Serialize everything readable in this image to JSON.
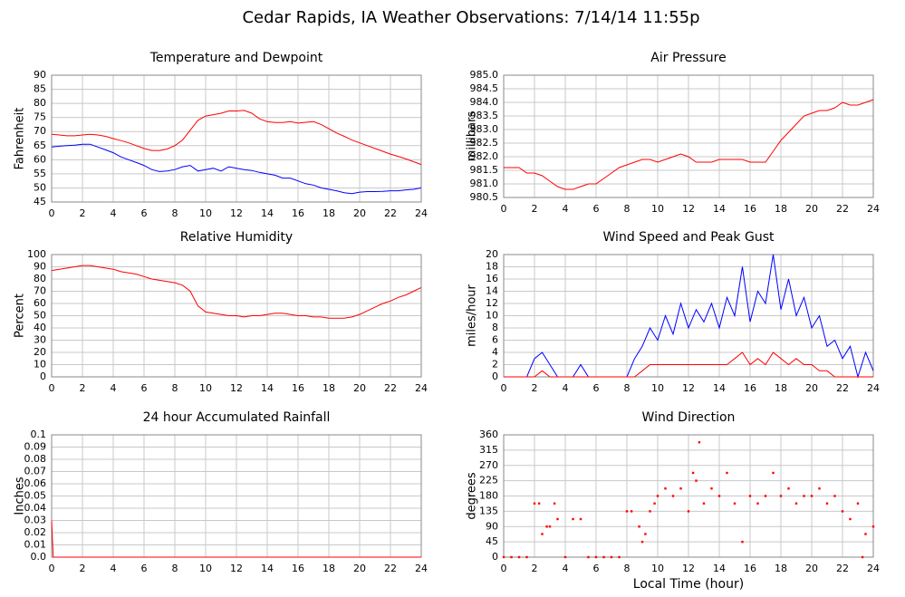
{
  "title": "Cedar Rapids, IA Weather Observations: 7/14/14 11:55p",
  "chart_data": [
    {
      "type": "line",
      "title": "Temperature and Dewpoint",
      "ylabel": "Fahrenheit",
      "x": [
        0,
        0.5,
        1,
        1.5,
        2,
        2.5,
        3,
        3.5,
        4,
        4.5,
        5,
        5.5,
        6,
        6.5,
        7,
        7.5,
        8,
        8.5,
        9,
        9.5,
        10,
        10.5,
        11,
        11.5,
        12,
        12.5,
        13,
        13.5,
        14,
        14.5,
        15,
        15.5,
        16,
        16.5,
        17,
        17.5,
        18,
        18.5,
        19,
        19.5,
        20,
        20.5,
        21,
        21.5,
        22,
        22.5,
        23,
        23.5,
        24
      ],
      "series": [
        {
          "color": "#ff0000",
          "values": [
            69,
            68.8,
            68.5,
            68.5,
            68.8,
            69,
            68.8,
            68.3,
            67.5,
            66.8,
            66,
            65,
            64,
            63.3,
            63.3,
            63.8,
            65,
            67,
            70.5,
            74,
            75.5,
            76,
            76.5,
            77.3,
            77.3,
            77.5,
            76.5,
            74.5,
            73.5,
            73.2,
            73.2,
            73.5,
            73,
            73.3,
            73.5,
            72.5,
            71,
            69.5,
            68.3,
            67,
            66,
            65,
            64,
            63,
            62,
            61.2,
            60.3,
            59.3,
            58.3
          ]
        },
        {
          "color": "#0000ff",
          "values": [
            64.5,
            64.8,
            65,
            65.2,
            65.5,
            65.5,
            64.5,
            63.5,
            62.5,
            61,
            60,
            59,
            58,
            56.5,
            55.8,
            56,
            56.5,
            57.5,
            58,
            56,
            56.5,
            57,
            56,
            57.5,
            57,
            56.5,
            56.2,
            55.5,
            55,
            54.5,
            53.5,
            53.5,
            52.5,
            51.5,
            51,
            50,
            49.5,
            49,
            48.3,
            48,
            48.5,
            48.7,
            48.7,
            48.8,
            49,
            49,
            49.3,
            49.5,
            50
          ]
        }
      ],
      "xlim": [
        0,
        24
      ],
      "xticks": [
        0,
        2,
        4,
        6,
        8,
        10,
        12,
        14,
        16,
        18,
        20,
        22,
        24
      ],
      "ylim": [
        45,
        90
      ],
      "yticks": [
        45,
        50,
        55,
        60,
        65,
        70,
        75,
        80,
        85,
        90
      ],
      "grid": true
    },
    {
      "type": "line",
      "title": "Air Pressure",
      "ylabel": "millibars",
      "x": [
        0,
        0.5,
        1,
        1.5,
        2,
        2.5,
        3,
        3.5,
        4,
        4.5,
        5,
        5.5,
        6,
        6.5,
        7,
        7.5,
        8,
        8.5,
        9,
        9.5,
        10,
        10.5,
        11,
        11.5,
        12,
        12.5,
        13,
        13.5,
        14,
        14.5,
        15,
        15.5,
        16,
        16.5,
        17,
        17.5,
        18,
        18.5,
        19,
        19.5,
        20,
        20.5,
        21,
        21.5,
        22,
        22.5,
        23,
        23.5,
        24
      ],
      "series": [
        {
          "color": "#ff0000",
          "values": [
            981.6,
            981.6,
            981.6,
            981.4,
            981.4,
            981.3,
            981.1,
            980.9,
            980.8,
            980.8,
            980.9,
            981.0,
            981.0,
            981.2,
            981.4,
            981.6,
            981.7,
            981.8,
            981.9,
            981.9,
            981.8,
            981.9,
            982.0,
            982.1,
            982.0,
            981.8,
            981.8,
            981.8,
            981.9,
            981.9,
            981.9,
            981.9,
            981.8,
            981.8,
            981.8,
            982.2,
            982.6,
            982.9,
            983.2,
            983.5,
            983.6,
            983.7,
            983.7,
            983.8,
            984.0,
            983.9,
            983.9,
            984.0,
            984.1
          ]
        }
      ],
      "xlim": [
        0,
        24
      ],
      "xticks": [
        0,
        2,
        4,
        6,
        8,
        10,
        12,
        14,
        16,
        18,
        20,
        22,
        24
      ],
      "ylim": [
        980.5,
        985
      ],
      "yticks": [
        980.5,
        {
          "value": 981,
          "label": "981.0"
        },
        981.5,
        {
          "value": 982,
          "label": "982.0"
        },
        982.5,
        {
          "value": 983,
          "label": "983.0"
        },
        983.5,
        {
          "value": 984,
          "label": "984.0"
        },
        984.5,
        {
          "value": 985,
          "label": "985.0"
        }
      ],
      "grid": true
    },
    {
      "type": "line",
      "title": "Relative Humidity",
      "ylabel": "Percent",
      "x": [
        0,
        0.5,
        1,
        1.5,
        2,
        2.5,
        3,
        3.5,
        4,
        4.5,
        5,
        5.5,
        6,
        6.5,
        7,
        7.5,
        8,
        8.5,
        9,
        9.5,
        10,
        10.5,
        11,
        11.5,
        12,
        12.5,
        13,
        13.5,
        14,
        14.5,
        15,
        15.5,
        16,
        16.5,
        17,
        17.5,
        18,
        18.5,
        19,
        19.5,
        20,
        20.5,
        21,
        21.5,
        22,
        22.5,
        23,
        23.5,
        24
      ],
      "series": [
        {
          "color": "#ff0000",
          "values": [
            87,
            88,
            89,
            90,
            91,
            91,
            90,
            89,
            88,
            86,
            85,
            84,
            82,
            80,
            79,
            78,
            77,
            75,
            70,
            58,
            53,
            52,
            51,
            50,
            50,
            49,
            50,
            50,
            51,
            52,
            52,
            51,
            50,
            50,
            49,
            49,
            48,
            48,
            48,
            49,
            51,
            54,
            57,
            60,
            62,
            65,
            67,
            70,
            73
          ]
        }
      ],
      "xlim": [
        0,
        24
      ],
      "xticks": [
        0,
        2,
        4,
        6,
        8,
        10,
        12,
        14,
        16,
        18,
        20,
        22,
        24
      ],
      "ylim": [
        0,
        100
      ],
      "yticks": [
        0,
        10,
        20,
        30,
        40,
        50,
        60,
        70,
        80,
        90,
        100
      ],
      "grid": true
    },
    {
      "type": "line",
      "title": "Wind Speed and Peak Gust",
      "ylabel": "miles/hour",
      "x": [
        0,
        0.5,
        1,
        1.5,
        2,
        2.5,
        3,
        3.5,
        4,
        4.5,
        5,
        5.5,
        6,
        6.5,
        7,
        7.5,
        8,
        8.5,
        9,
        9.5,
        10,
        10.5,
        11,
        11.5,
        12,
        12.5,
        13,
        13.5,
        14,
        14.5,
        15,
        15.5,
        16,
        16.5,
        17,
        17.5,
        18,
        18.5,
        19,
        19.5,
        20,
        20.5,
        21,
        21.5,
        22,
        22.5,
        23,
        23.5,
        24
      ],
      "series": [
        {
          "color": "#0000ff",
          "values": [
            0,
            0,
            0,
            0,
            3,
            4,
            2,
            0,
            0,
            0,
            2,
            0,
            0,
            0,
            0,
            0,
            0,
            3,
            5,
            8,
            6,
            10,
            7,
            12,
            8,
            11,
            9,
            12,
            8,
            13,
            10,
            18,
            9,
            14,
            12,
            20,
            11,
            16,
            10,
            13,
            8,
            10,
            5,
            6,
            3,
            5,
            0,
            4,
            1
          ]
        },
        {
          "color": "#ff0000",
          "values": [
            0,
            0,
            0,
            0,
            0,
            1,
            0,
            0,
            0,
            0,
            0,
            0,
            0,
            0,
            0,
            0,
            0,
            0,
            1,
            2,
            2,
            2,
            2,
            2,
            2,
            2,
            2,
            2,
            2,
            2,
            3,
            4,
            2,
            3,
            2,
            4,
            3,
            2,
            3,
            2,
            2,
            1,
            1,
            0,
            0,
            0,
            0,
            0,
            0
          ]
        }
      ],
      "xlim": [
        0,
        24
      ],
      "xticks": [
        0,
        2,
        4,
        6,
        8,
        10,
        12,
        14,
        16,
        18,
        20,
        22,
        24
      ],
      "ylim": [
        0,
        20
      ],
      "yticks": [
        0,
        2,
        4,
        6,
        8,
        10,
        12,
        14,
        16,
        18,
        20
      ],
      "grid": true
    },
    {
      "type": "line",
      "title": "24 hour Accumulated Rainfall",
      "ylabel": "Inches",
      "x": [
        0,
        0.1,
        24
      ],
      "series": [
        {
          "color": "#ff0000",
          "values": [
            0.03,
            0,
            0
          ]
        }
      ],
      "xlim": [
        0,
        24
      ],
      "xticks": [
        0,
        2,
        4,
        6,
        8,
        10,
        12,
        14,
        16,
        18,
        20,
        22,
        24
      ],
      "ylim": [
        0,
        0.1
      ],
      "yticks": [
        {
          "value": 0,
          "label": "0.0"
        },
        0.01,
        0.02,
        0.03,
        0.04,
        0.05,
        0.06,
        0.07,
        0.08,
        0.09,
        0.1
      ],
      "grid": true
    },
    {
      "type": "scatter",
      "title": "Wind Direction",
      "ylabel": "degrees",
      "xlabel": "Local Time (hour)",
      "x": [
        0,
        0.5,
        1,
        1.5,
        2,
        2.3,
        2.5,
        2.8,
        3,
        3.3,
        3.5,
        4,
        4.5,
        5,
        5.5,
        6,
        6.5,
        7,
        7.5,
        8,
        8.3,
        8.8,
        9,
        9.2,
        9.5,
        9.8,
        10,
        10.5,
        11,
        11.5,
        12,
        12.3,
        12.5,
        12.7,
        13,
        13.5,
        14,
        14.5,
        15,
        15.5,
        16,
        16.5,
        17,
        17.5,
        18,
        18.5,
        19,
        19.5,
        20,
        20.5,
        21,
        21.5,
        22,
        22.5,
        23,
        23.3,
        23.5,
        24
      ],
      "series": [
        {
          "color": "#ff0000",
          "values": [
            0,
            0,
            0,
            0,
            158,
            158,
            68,
            90,
            90,
            158,
            112,
            0,
            112,
            112,
            0,
            0,
            0,
            0,
            0,
            135,
            135,
            90,
            45,
            68,
            135,
            158,
            180,
            202,
            180,
            202,
            135,
            248,
            225,
            338,
            158,
            202,
            180,
            248,
            158,
            45,
            180,
            158,
            180,
            248,
            180,
            202,
            158,
            180,
            180,
            202,
            158,
            180,
            135,
            112,
            158,
            0,
            68,
            90
          ]
        }
      ],
      "xlim": [
        0,
        24
      ],
      "xticks": [
        0,
        2,
        4,
        6,
        8,
        10,
        12,
        14,
        16,
        18,
        20,
        22,
        24
      ],
      "ylim": [
        0,
        360
      ],
      "yticks": [
        0,
        45,
        90,
        135,
        180,
        225,
        270,
        315,
        360
      ],
      "grid": true
    }
  ]
}
